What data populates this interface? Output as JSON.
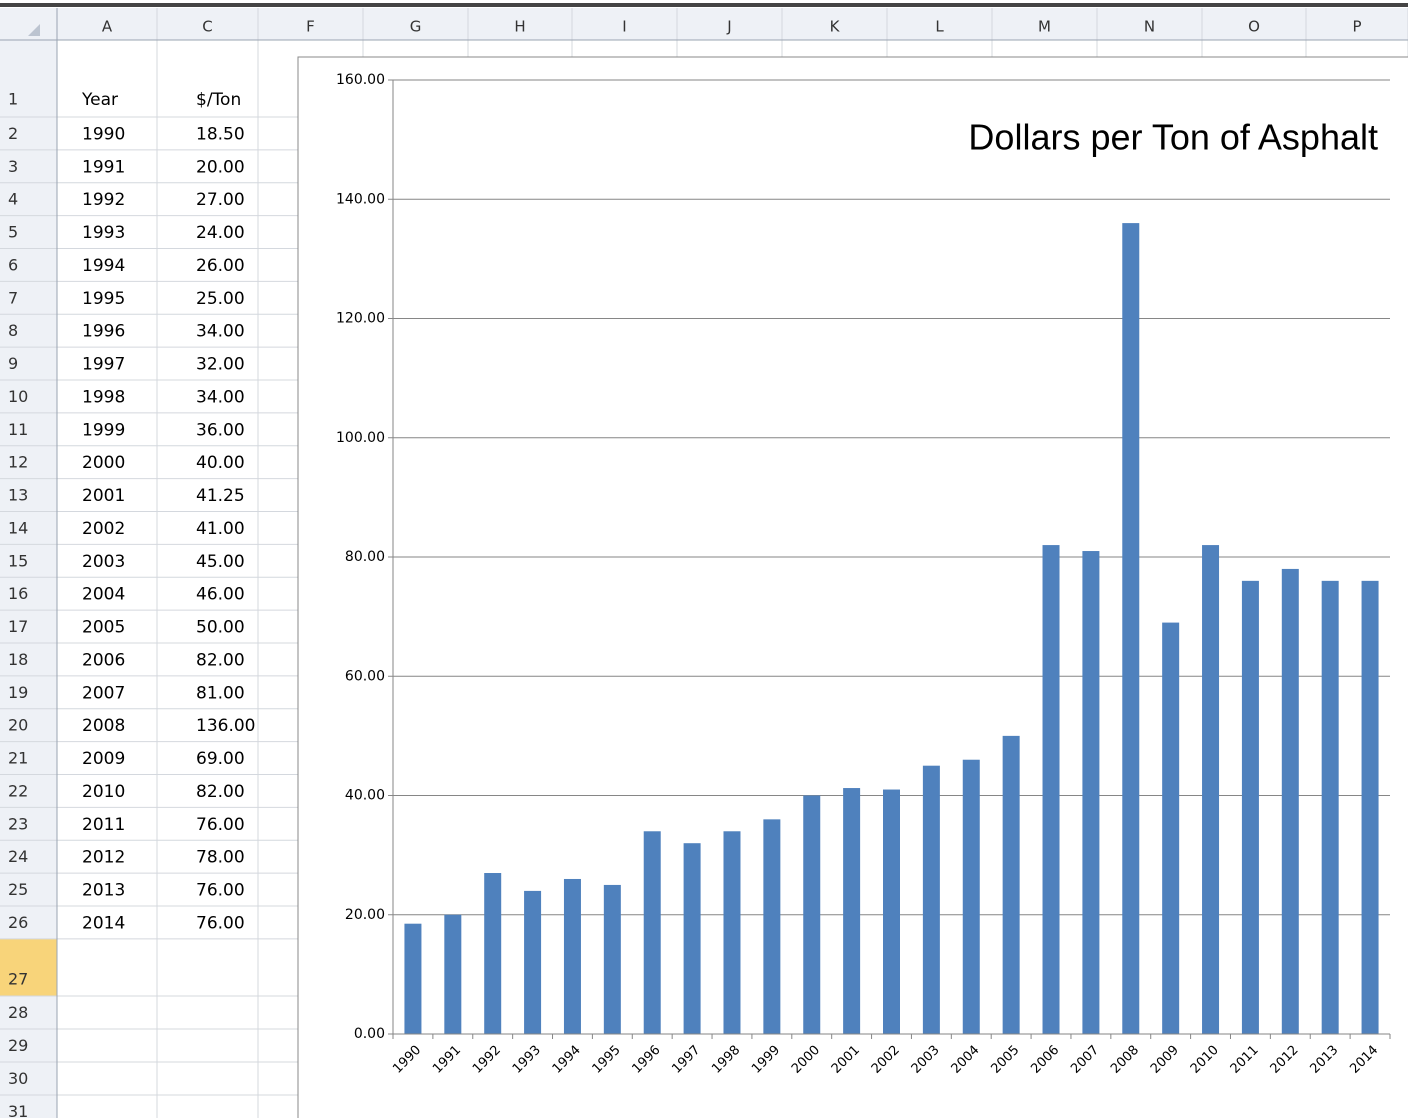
{
  "columns": [
    "A",
    "C",
    "F",
    "G",
    "H",
    "I",
    "J",
    "K",
    "L",
    "M",
    "N",
    "O",
    "P"
  ],
  "rows": [
    "1",
    "2",
    "3",
    "4",
    "5",
    "6",
    "7",
    "8",
    "9",
    "10",
    "11",
    "12",
    "13",
    "14",
    "15",
    "16",
    "17",
    "18",
    "19",
    "20",
    "21",
    "22",
    "23",
    "24",
    "25",
    "26",
    "27",
    "28",
    "29",
    "30",
    "31"
  ],
  "cells": {
    "header": [
      "Year",
      "$/Ton"
    ],
    "data": [
      [
        "1990",
        "18.50"
      ],
      [
        "1991",
        "20.00"
      ],
      [
        "1992",
        "27.00"
      ],
      [
        "1993",
        "24.00"
      ],
      [
        "1994",
        "26.00"
      ],
      [
        "1995",
        "25.00"
      ],
      [
        "1996",
        "34.00"
      ],
      [
        "1997",
        "32.00"
      ],
      [
        "1998",
        "34.00"
      ],
      [
        "1999",
        "36.00"
      ],
      [
        "2000",
        "40.00"
      ],
      [
        "2001",
        "41.25"
      ],
      [
        "2002",
        "41.00"
      ],
      [
        "2003",
        "45.00"
      ],
      [
        "2004",
        "46.00"
      ],
      [
        "2005",
        "50.00"
      ],
      [
        "2006",
        "82.00"
      ],
      [
        "2007",
        "81.00"
      ],
      [
        "2008",
        "136.00"
      ],
      [
        "2009",
        "69.00"
      ],
      [
        "2010",
        "82.00"
      ],
      [
        "2011",
        "76.00"
      ],
      [
        "2012",
        "78.00"
      ],
      [
        "2013",
        "76.00"
      ],
      [
        "2014",
        "76.00"
      ]
    ]
  },
  "chart_data": {
    "type": "bar",
    "title": "Dollars per Ton of Asphalt",
    "categories": [
      "1990",
      "1991",
      "1992",
      "1993",
      "1994",
      "1995",
      "1996",
      "1997",
      "1998",
      "1999",
      "2000",
      "2001",
      "2002",
      "2003",
      "2004",
      "2005",
      "2006",
      "2007",
      "2008",
      "2009",
      "2010",
      "2011",
      "2012",
      "2013",
      "2014"
    ],
    "values": [
      18.5,
      20,
      27,
      24,
      26,
      25,
      34,
      32,
      34,
      36,
      40,
      41.25,
      41,
      45,
      46,
      50,
      82,
      81,
      136,
      69,
      82,
      76,
      78,
      76,
      76
    ],
    "color": "#4f81bd",
    "ylim": [
      0,
      160
    ],
    "yticks": [
      {
        "value": 0,
        "label": "0.00"
      },
      {
        "value": 20,
        "label": "20.00"
      },
      {
        "value": 40,
        "label": "40.00"
      },
      {
        "value": 60,
        "label": "60.00"
      },
      {
        "value": 80,
        "label": "80.00"
      },
      {
        "value": 100,
        "label": "100.00"
      },
      {
        "value": 120,
        "label": "120.00"
      },
      {
        "value": 140,
        "label": "140.00"
      },
      {
        "value": 160,
        "label": "160.00"
      }
    ],
    "grid": true
  }
}
